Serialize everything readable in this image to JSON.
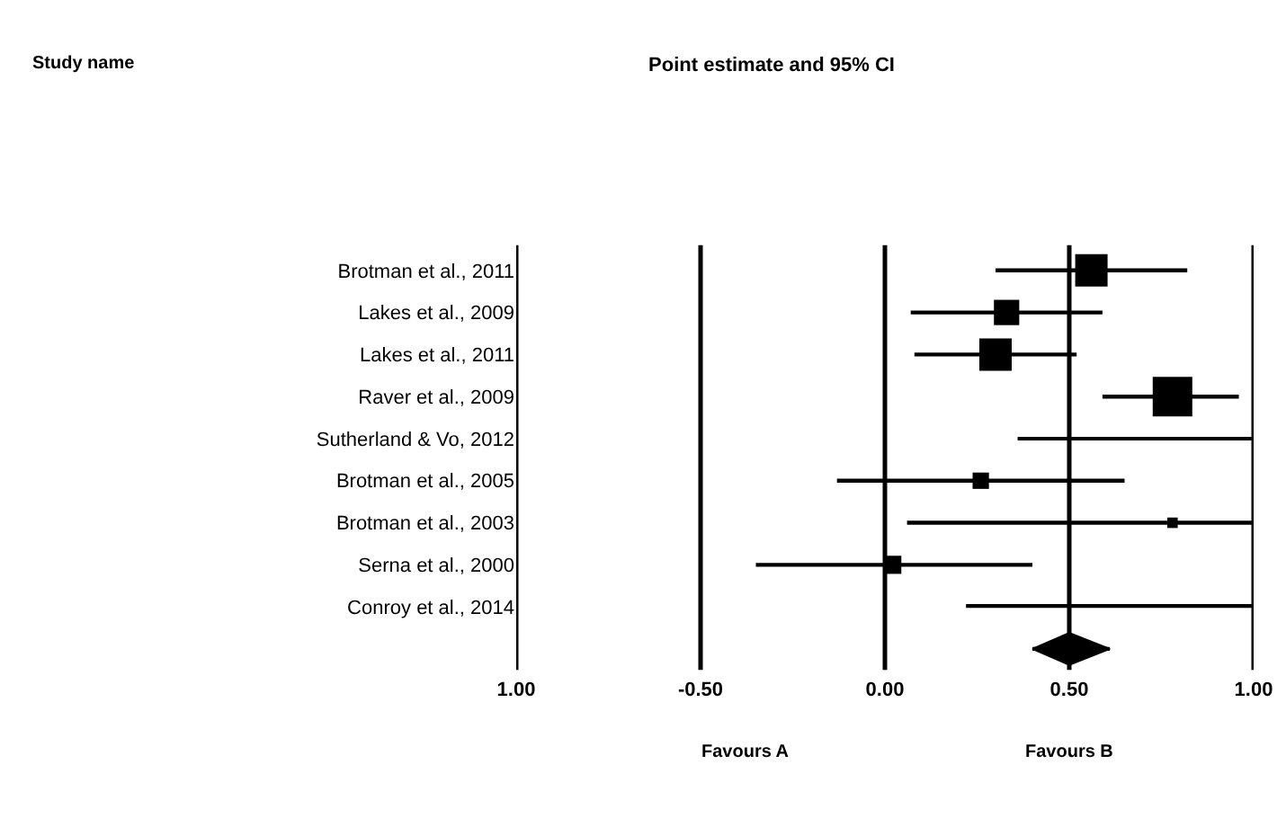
{
  "chart_data": {
    "type": "bubble",
    "orientation": "horizontal",
    "title": "Point estimate and 95% CI",
    "categories": [
      "Brotman et al., 2011",
      "Lakes et al., 2009",
      "Lakes et al., 2011",
      "Raver et al., 2009",
      "Sutherland & Vo, 2012",
      "Brotman et al., 2005",
      "Brotman et al., 2003",
      "Serna et al., 2000",
      "Conroy et al., 2014",
      null
    ],
    "series": [
      {
        "color": "#000000",
        "marker": "square",
        "values": [
          0.56,
          0.33,
          0.3,
          0.78,
          null,
          0.26,
          0.78,
          0.02,
          null,
          null
        ],
        "sizes": [
          0.67,
          0.41,
          0.67,
          1,
          null,
          0.17,
          0.07,
          0.21,
          null,
          null
        ],
        "errors": [
          [
            0.3,
            0.82
          ],
          [
            0.07,
            0.59
          ],
          [
            0.08,
            0.52
          ],
          [
            0.59,
            0.96
          ],
          null,
          [
            -0.13,
            0.65
          ],
          [
            0.06,
            1.0
          ],
          [
            -0.35,
            0.4
          ],
          null,
          null
        ]
      },
      {
        "type": "bar",
        "color": "#000000",
        "base": [
          null,
          null,
          null,
          null,
          0.36,
          null,
          null,
          null,
          0.22,
          null
        ],
        "values": [
          null,
          null,
          null,
          null,
          0.64,
          null,
          null,
          null,
          0.78,
          null
        ]
      },
      {
        "color": "#000000",
        "marker": "diamond",
        "values": [
          null,
          null,
          null,
          null,
          null,
          null,
          null,
          null,
          null,
          0.5
        ],
        "errors": [
          null,
          null,
          null,
          null,
          null,
          null,
          null,
          null,
          null,
          [
            0.4,
            0.61
          ]
        ]
      }
    ],
    "xlim": [
      -1,
      1
    ],
    "xticks": [
      {
        "value": -1,
        "label": "1.00"
      },
      {
        "value": -0.5,
        "label": "-0.50"
      },
      {
        "value": 0,
        "label": "0.00"
      },
      {
        "value": 0.5,
        "label": "0.50"
      },
      {
        "value": 1,
        "label": "1.00"
      }
    ],
    "grid": "x",
    "annotations": [
      "Study name",
      "Favours A",
      "Favours B"
    ]
  }
}
